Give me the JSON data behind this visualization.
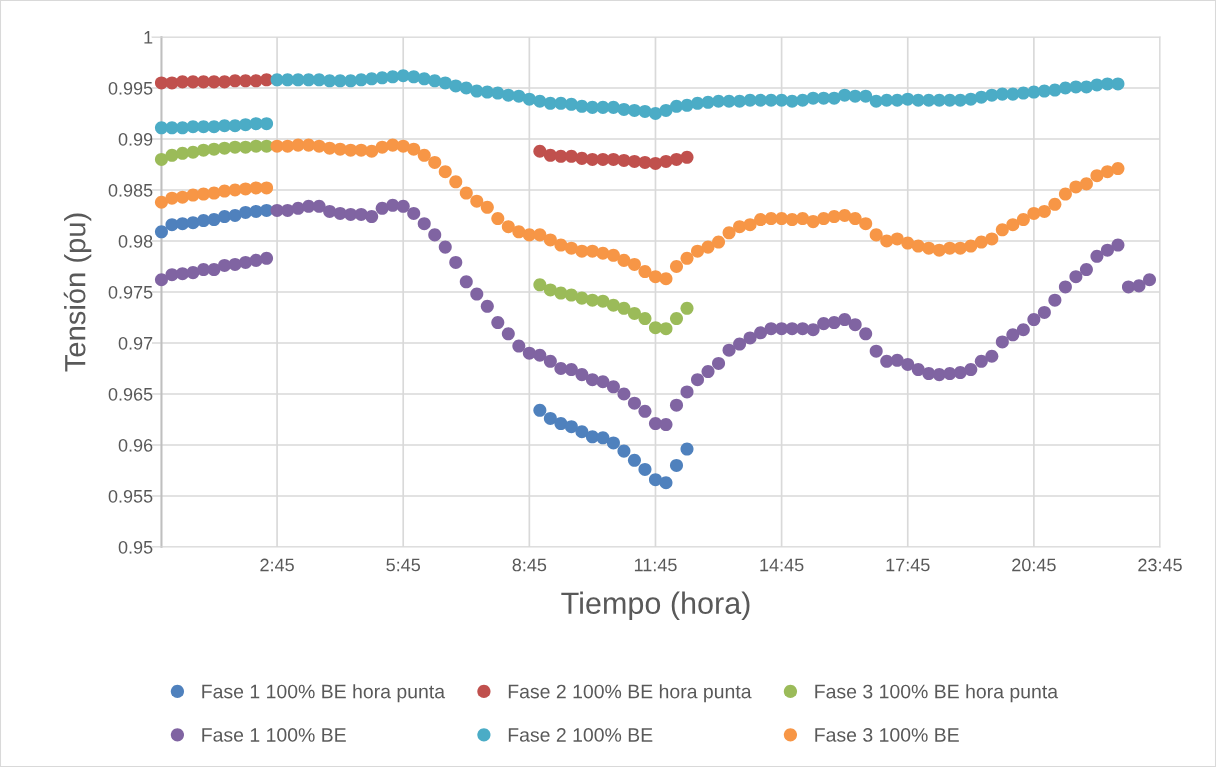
{
  "chart_data": {
    "type": "scatter",
    "xlabel": "Tiempo (hora)",
    "ylabel": "Tensión (pu)",
    "categories": [
      null,
      null,
      null,
      null,
      null,
      null,
      null,
      null,
      null,
      null,
      null,
      "2:45",
      null,
      null,
      null,
      null,
      null,
      null,
      null,
      null,
      null,
      null,
      null,
      "5:45",
      null,
      null,
      null,
      null,
      null,
      null,
      null,
      null,
      null,
      null,
      null,
      "8:45",
      null,
      null,
      null,
      null,
      null,
      null,
      null,
      null,
      null,
      null,
      null,
      "11:45",
      null,
      null,
      null,
      null,
      null,
      null,
      null,
      null,
      null,
      null,
      null,
      "14:45",
      null,
      null,
      null,
      null,
      null,
      null,
      null,
      null,
      null,
      null,
      null,
      "17:45",
      null,
      null,
      null,
      null,
      null,
      null,
      null,
      null,
      null,
      null,
      null,
      "20:45",
      null,
      null,
      null,
      null,
      null,
      null,
      null,
      null,
      null,
      null,
      null,
      "23:45"
    ],
    "ylim": [
      0.95,
      1
    ],
    "yticks": [
      0.95,
      0.955,
      0.96,
      0.965,
      0.97,
      0.975,
      0.98,
      0.985,
      0.99,
      0.995,
      1
    ],
    "grid": true,
    "legend": "bottom",
    "marker": "circle",
    "series": [
      {
        "name": "Fase 1 100% BE hora punta",
        "color": "#4f81bd",
        "values": [
          0.9809,
          0.9816,
          0.9817,
          0.9818,
          0.982,
          0.9821,
          0.9824,
          0.9825,
          0.9828,
          0.9829,
          0.983,
          null,
          null,
          null,
          null,
          null,
          null,
          null,
          null,
          null,
          null,
          null,
          null,
          null,
          null,
          null,
          null,
          null,
          null,
          null,
          null,
          null,
          null,
          null,
          null,
          null,
          0.9634,
          0.9626,
          0.9621,
          0.9618,
          0.9613,
          0.9608,
          0.9607,
          0.9602,
          0.9594,
          0.9585,
          0.9576,
          0.9566,
          0.9563,
          0.958,
          0.9596,
          null,
          null,
          null,
          null,
          null,
          null,
          null,
          null,
          null,
          null,
          null,
          null,
          null,
          null,
          null,
          null,
          null,
          null,
          null,
          null,
          null,
          null,
          null,
          null,
          null,
          null,
          null,
          null,
          null,
          null,
          null,
          null,
          null,
          null,
          null,
          null,
          null,
          null,
          null,
          null,
          null,
          null,
          null,
          null,
          null
        ]
      },
      {
        "name": "Fase 2 100% BE hora punta",
        "color": "#c0504d",
        "values": [
          0.9955,
          0.9955,
          0.9956,
          0.9956,
          0.9956,
          0.9956,
          0.9956,
          0.9957,
          0.9957,
          0.9957,
          0.9958,
          null,
          null,
          null,
          null,
          null,
          null,
          null,
          null,
          null,
          null,
          null,
          null,
          null,
          null,
          null,
          null,
          null,
          null,
          null,
          null,
          null,
          null,
          null,
          null,
          null,
          0.9888,
          0.9884,
          0.9883,
          0.9883,
          0.9881,
          0.988,
          0.988,
          0.988,
          0.9879,
          0.9878,
          0.9877,
          0.9876,
          0.9878,
          0.988,
          0.9882,
          null,
          null,
          null,
          null,
          null,
          null,
          null,
          null,
          null,
          null,
          null,
          null,
          null,
          null,
          null,
          null,
          null,
          null,
          null,
          null,
          null,
          null,
          null,
          null,
          null,
          null,
          null,
          null,
          null,
          null,
          null,
          null,
          null,
          null,
          null,
          null,
          null,
          null,
          null,
          null,
          null,
          null,
          null,
          null,
          null
        ]
      },
      {
        "name": "Fase 3 100% BE hora punta",
        "color": "#9bbb59",
        "values": [
          0.988,
          0.9884,
          0.9886,
          0.9887,
          0.9889,
          0.989,
          0.9891,
          0.9892,
          0.9892,
          0.9893,
          0.9893,
          null,
          null,
          null,
          null,
          null,
          null,
          null,
          null,
          null,
          null,
          null,
          null,
          null,
          null,
          null,
          null,
          null,
          null,
          null,
          null,
          null,
          null,
          null,
          null,
          null,
          0.9757,
          0.9752,
          0.9749,
          0.9747,
          0.9744,
          0.9742,
          0.9741,
          0.9737,
          0.9734,
          0.9729,
          0.9724,
          0.9715,
          0.9714,
          0.9724,
          0.9734,
          null,
          null,
          null,
          null,
          null,
          null,
          null,
          null,
          null,
          null,
          null,
          null,
          null,
          null,
          null,
          null,
          null,
          null,
          null,
          null,
          null,
          null,
          null,
          null,
          null,
          null,
          null,
          null,
          null,
          null,
          null,
          null,
          null,
          null,
          null,
          null,
          null,
          null,
          null,
          null,
          null,
          null,
          null,
          null,
          null
        ]
      },
      {
        "name": "Fase 1 100% BE",
        "color": "#8064a2",
        "values": [
          0.9762,
          0.9767,
          0.9768,
          0.9769,
          0.9772,
          0.9772,
          0.9776,
          0.9777,
          0.9779,
          0.9781,
          0.9783,
          0.983,
          0.983,
          0.9832,
          0.9834,
          0.9834,
          0.9829,
          0.9827,
          0.9826,
          0.9826,
          0.9824,
          0.9832,
          0.9835,
          0.9834,
          0.9827,
          0.9817,
          0.9806,
          0.9794,
          0.9779,
          0.976,
          0.9748,
          0.9736,
          0.972,
          0.9709,
          0.9697,
          0.969,
          0.9688,
          0.9682,
          0.9675,
          0.9674,
          0.9669,
          0.9664,
          0.9662,
          0.9657,
          0.965,
          0.9641,
          0.9633,
          0.9621,
          0.962,
          0.9639,
          0.9652,
          0.9664,
          0.9672,
          0.968,
          0.9693,
          0.9699,
          0.9705,
          0.971,
          0.9714,
          0.9714,
          0.9714,
          0.9714,
          0.9713,
          0.9719,
          0.972,
          0.9723,
          0.9718,
          0.9709,
          0.9692,
          0.9682,
          0.9683,
          0.9679,
          0.9674,
          0.967,
          0.9669,
          0.967,
          0.9671,
          0.9674,
          0.9682,
          0.9687,
          0.9701,
          0.9708,
          0.9713,
          0.9723,
          0.973,
          0.9742,
          0.9755,
          0.9765,
          0.9772,
          0.9785,
          0.9791,
          0.9796,
          0.9755,
          0.9756,
          0.9762,
          null
        ]
      },
      {
        "name": "Fase 2 100% BE",
        "color": "#4bacc6",
        "values": [
          0.9911,
          0.9911,
          0.9911,
          0.9912,
          0.9912,
          0.9912,
          0.9913,
          0.9913,
          0.9914,
          0.9915,
          0.9915,
          0.9958,
          0.9958,
          0.9958,
          0.9958,
          0.9958,
          0.9957,
          0.9957,
          0.9957,
          0.9958,
          0.9959,
          0.996,
          0.9961,
          0.9962,
          0.9961,
          0.9959,
          0.9957,
          0.9955,
          0.9952,
          0.995,
          0.9947,
          0.9946,
          0.9945,
          0.9943,
          0.9942,
          0.9939,
          0.9937,
          0.9935,
          0.9935,
          0.9934,
          0.9932,
          0.9931,
          0.9931,
          0.9931,
          0.9929,
          0.9928,
          0.9927,
          0.9925,
          0.9928,
          0.9932,
          0.9933,
          0.9935,
          0.9936,
          0.9937,
          0.9937,
          0.9937,
          0.9938,
          0.9938,
          0.9938,
          0.9938,
          0.9937,
          0.9938,
          0.994,
          0.994,
          0.994,
          0.9943,
          0.9942,
          0.9942,
          0.9937,
          0.9938,
          0.9938,
          0.9939,
          0.9938,
          0.9938,
          0.9938,
          0.9938,
          0.9938,
          0.9939,
          0.9941,
          0.9943,
          0.9944,
          0.9944,
          0.9945,
          0.9946,
          0.9947,
          0.9948,
          0.995,
          0.9951,
          0.9951,
          0.9953,
          0.9954,
          0.9954,
          null,
          null,
          null,
          null
        ]
      },
      {
        "name": "Fase 3 100% BE",
        "color": "#f79646",
        "values": [
          0.9838,
          0.9842,
          0.9843,
          0.9845,
          0.9846,
          0.9847,
          0.9849,
          0.985,
          0.9851,
          0.9852,
          0.9852,
          0.9893,
          0.9893,
          0.9894,
          0.9894,
          0.9893,
          0.9891,
          0.989,
          0.9889,
          0.9889,
          0.9888,
          0.9892,
          0.9894,
          0.9893,
          0.989,
          0.9884,
          0.9877,
          0.9868,
          0.9858,
          0.9847,
          0.9839,
          0.9833,
          0.9822,
          0.9814,
          0.9809,
          0.9806,
          0.9806,
          0.9801,
          0.9796,
          0.9793,
          0.979,
          0.979,
          0.9788,
          0.9786,
          0.9781,
          0.9777,
          0.977,
          0.9765,
          0.9763,
          0.9775,
          0.9783,
          0.979,
          0.9794,
          0.9799,
          0.9808,
          0.9814,
          0.9816,
          0.9821,
          0.9822,
          0.9822,
          0.9821,
          0.9822,
          0.9819,
          0.9822,
          0.9824,
          0.9825,
          0.9822,
          0.9817,
          0.9806,
          0.98,
          0.9802,
          0.9798,
          0.9795,
          0.9793,
          0.9791,
          0.9793,
          0.9793,
          0.9795,
          0.9799,
          0.9802,
          0.9811,
          0.9816,
          0.9821,
          0.9827,
          0.9829,
          0.9836,
          0.9846,
          0.9853,
          0.9856,
          0.9864,
          0.9868,
          0.9871,
          null,
          null,
          null,
          null
        ]
      }
    ]
  }
}
